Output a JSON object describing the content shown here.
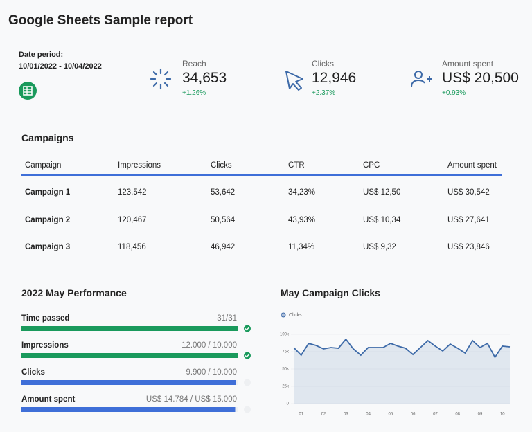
{
  "header": {
    "title": "Google Sheets Sample report",
    "date_label": "Date period:",
    "date_range": "10/01/2022 - 10/04/2022"
  },
  "kpis": [
    {
      "label": "Reach",
      "value": "34,653",
      "change": "+1.26%"
    },
    {
      "label": "Clicks",
      "value": "12,946",
      "change": "+2.37%"
    },
    {
      "label": "Amount spent",
      "value": "US$ 20,500",
      "change": "+0.93%"
    }
  ],
  "table": {
    "title": "Campaigns",
    "columns": [
      "Campaign",
      "Impressions",
      "Clicks",
      "CTR",
      "CPC",
      "Amount spent"
    ],
    "rows": [
      [
        "Campaign 1",
        "123,542",
        "53,642",
        "34,23%",
        "US$ 12,50",
        "US$ 30,542"
      ],
      [
        "Campaign 2",
        "120,467",
        "50,564",
        "43,93%",
        "US$ 10,34",
        "US$ 27,641"
      ],
      [
        "Campaign 3",
        "118,456",
        "46,942",
        "11,34%",
        "US$ 9,32",
        "US$ 23,846"
      ]
    ]
  },
  "progress": {
    "title": "2022 May Performance",
    "items": [
      {
        "name": "Time passed",
        "label": "31/31",
        "value": 31,
        "target": 31,
        "color": "#1a9a5c",
        "done": true
      },
      {
        "name": "Impressions",
        "label": "12.000 / 10.000",
        "value": 12000,
        "target": 10000,
        "color": "#1a9a5c",
        "done": true
      },
      {
        "name": "Clicks",
        "label": "9.900 / 10.000",
        "value": 9900,
        "target": 10000,
        "color": "#3f6fd8",
        "done": false
      },
      {
        "name": "Amount spent",
        "label": "US$ 14.784 / US$ 15.000",
        "value": 14784,
        "target": 15000,
        "color": "#3f6fd8",
        "done": false
      }
    ]
  },
  "chart_data": {
    "type": "area",
    "title": "May Campaign Clicks",
    "categories": [
      null,
      "01",
      null,
      null,
      "02",
      null,
      null,
      "03",
      null,
      null,
      "04",
      null,
      null,
      "05",
      null,
      null,
      "06",
      null,
      null,
      "07",
      null,
      null,
      "08",
      null,
      null,
      "09",
      null,
      null,
      "10",
      null
    ],
    "series": [
      {
        "name": "Clicks",
        "color": "#3d6aa8",
        "values": [
          81000,
          70000,
          87000,
          84000,
          79000,
          81000,
          80000,
          93000,
          79000,
          70000,
          81000,
          81000,
          81000,
          87000,
          83000,
          80000,
          71000,
          81000,
          91000,
          83000,
          76000,
          86000,
          80000,
          73000,
          91000,
          81000,
          87000,
          67000,
          83000,
          82000
        ]
      }
    ],
    "ylim": [
      0,
      100000
    ],
    "yticks": [
      0,
      {
        "value": 25000,
        "label": "25k"
      },
      {
        "value": 50000,
        "label": "50k"
      },
      {
        "value": 75000,
        "label": "75k"
      },
      {
        "value": 100000,
        "label": "100k"
      }
    ],
    "grid": true
  }
}
